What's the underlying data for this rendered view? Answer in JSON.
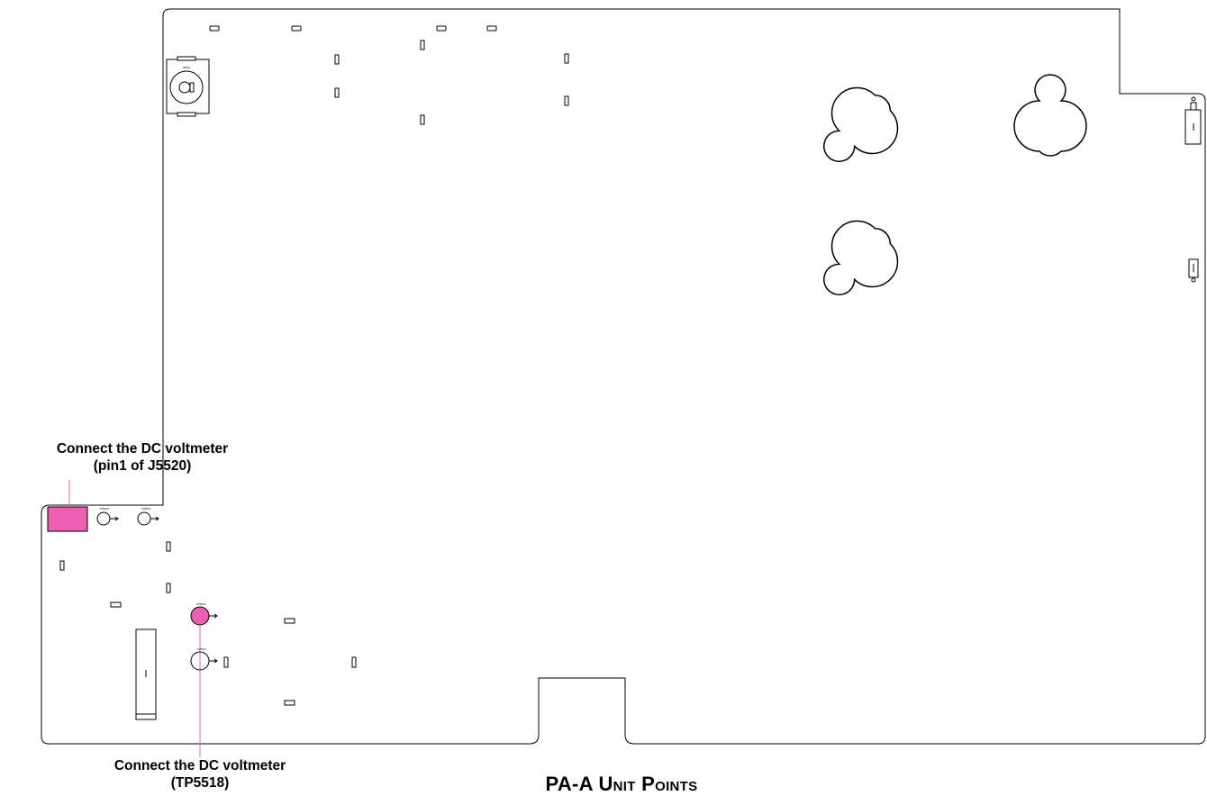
{
  "diagram": {
    "title": "PA-A Unit Points",
    "callouts": {
      "j5520": {
        "line1": "Connect the DC voltmeter",
        "line2": "(pin1 of J5520)"
      },
      "tp5518": {
        "line1": "Connect the DC voltmeter",
        "line2": "(TP5518)"
      }
    },
    "highlight_color": "#ee5fb4",
    "component_labels": {
      "battery": "J5501",
      "tp_a": "TP5520",
      "tp_b": "TP5519",
      "tp_c": "TP5518",
      "tp_d": "TP5517"
    }
  }
}
